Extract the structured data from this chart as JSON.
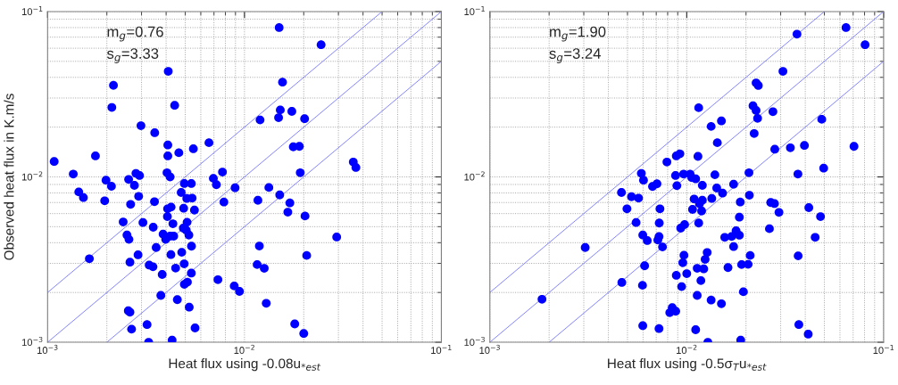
{
  "chart_data": [
    {
      "type": "scatter",
      "xlabel": "Heat flux using -0.08u$_{*est}$",
      "ylabel": "Observed heat flux in K.m/s",
      "annotations": [
        "m$_{g}$=0.76\ns$_{g}$=3.33"
      ],
      "log": "xy",
      "grid": true,
      "xlim": [
        0.001,
        0.1
      ],
      "ylim": [
        0.001,
        0.1
      ],
      "xticks": [
        {
          "value": 0.001,
          "label": "10$^{−3}$"
        },
        {
          "value": 0.01,
          "label": "10$^{−2}$"
        },
        {
          "value": 0.1,
          "label": "10$^{−1}$"
        }
      ],
      "yticks": [
        {
          "value": 0.001,
          "label": "10$^{−3}$"
        },
        {
          "value": 0.01,
          "label": "10$^{−2}$"
        },
        {
          "value": 0.1,
          "label": "10$^{−1}$"
        }
      ],
      "series": [
        {
          "marker": "circle",
          "color": "#0000ff",
          "x": [
            0.015,
            0.0245,
            0.0041,
            0.00216,
            0.00212,
            0.0156,
            0.00442,
            0.012,
            0.0149,
            0.0152,
            0.0174,
            0.0202,
            0.00298,
            0.0035,
            0.00408,
            0.00408,
            0.00464,
            0.0055,
            0.0066,
            0.0177,
            0.019,
            0.00108,
            0.00175,
            0.0357,
            0.0368,
            0.0192,
            0.00135,
            0.00281,
            0.00293,
            0.00404,
            0.00419,
            0.00773,
            0.00695,
            0.0072,
            0.00198,
            0.00211,
            0.00258,
            0.00276,
            0.00495,
            0.00537,
            0.00896,
            0.0133,
            0.00144,
            0.00152,
            0.00195,
            0.0029,
            0.00264,
            0.00349,
            0.00477,
            0.00509,
            0.00542,
            0.00786,
            0.0117,
            0.0151,
            0.017,
            0.0166,
            0.0203,
            0.00407,
            0.00424,
            0.00491,
            0.00557,
            0.00406,
            0.00242,
            0.00305,
            0.00433,
            0.00511,
            0.00344,
            0.00489,
            0.00506,
            0.00522,
            0.00253,
            0.00259,
            0.00386,
            0.00398,
            0.00419,
            0.00437,
            0.00356,
            0.00538,
            0.00163,
            0.00288,
            0.00423,
            0.0048,
            0.00262,
            0.00328,
            0.00343,
            0.00447,
            0.00494,
            0.00382,
            0.00537,
            0.00513,
            0.00495,
            0.00733,
            0.0116,
            0.0126,
            0.0119,
            0.0294,
            0.0207,
            0.00887,
            0.00943,
            0.00376,
            0.00456,
            0.0129,
            0.00524,
            0.00257,
            0.00262,
            0.0032,
            0.00267,
            0.00561,
            0.018,
            0.02,
            0.00326,
            0.00429
          ],
          "values": [
            0.08,
            0.063,
            0.0435,
            0.0358,
            0.0263,
            0.0374,
            0.0271,
            0.0221,
            0.0228,
            0.0254,
            0.0249,
            0.0225,
            0.0204,
            0.0185,
            0.0156,
            0.0134,
            0.014,
            0.0148,
            0.0161,
            0.0152,
            0.0153,
            0.0124,
            0.0134,
            0.0123,
            0.0114,
            0.0106,
            0.0104,
            0.0105,
            0.0102,
            0.0106,
            0.01,
            0.0107,
            0.0098,
            0.00897,
            0.00955,
            0.00878,
            0.00966,
            0.00889,
            0.00912,
            0.00912,
            0.0086,
            0.00863,
            0.00811,
            0.0075,
            0.00717,
            0.00763,
            0.00682,
            0.00708,
            0.00805,
            0.00741,
            0.00744,
            0.00705,
            0.00722,
            0.00778,
            0.00696,
            0.00612,
            0.0058,
            0.00641,
            0.00657,
            0.00646,
            0.0063,
            0.00575,
            0.00534,
            0.0053,
            0.00521,
            0.00532,
            0.00496,
            0.0049,
            0.00476,
            0.00445,
            0.00445,
            0.00419,
            0.00451,
            0.00419,
            0.00438,
            0.00438,
            0.00374,
            0.00381,
            0.0032,
            0.00338,
            0.00339,
            0.0035,
            0.00305,
            0.00293,
            0.00286,
            0.00281,
            0.00298,
            0.00257,
            0.00262,
            0.00231,
            0.00224,
            0.00239,
            0.00295,
            0.0028,
            0.00382,
            0.00433,
            0.00335,
            0.00219,
            0.00203,
            0.00192,
            0.00181,
            0.00172,
            0.00163,
            0.00155,
            0.00152,
            0.00128,
            0.0012,
            0.00122,
            0.00129,
            0.00113,
            0.001,
            0.00103
          ]
        },
        {
          "type": "line",
          "color": "#8080ff",
          "x": [
            0.001,
            0.05
          ],
          "values": [
            0.002,
            0.1
          ]
        },
        {
          "type": "line",
          "color": "#8080ff",
          "x": [
            0.001,
            0.1
          ],
          "values": [
            0.001,
            0.1
          ]
        },
        {
          "type": "line",
          "color": "#8080ff",
          "x": [
            0.002,
            0.1
          ],
          "values": [
            0.001,
            0.05
          ]
        }
      ]
    },
    {
      "type": "scatter",
      "xlabel": "Heat flux using -0.5σ$_{T}$u$_{*est}$",
      "annotations": [
        "m$_{g}$=1.90\ns$_{g}$=3.24"
      ],
      "log": "xy",
      "grid": true,
      "xlim": [
        0.001,
        0.1
      ],
      "ylim": [
        0.001,
        0.1
      ],
      "xticks": [
        {
          "value": 0.001,
          "label": "10$^{−3}$"
        },
        {
          "value": 0.01,
          "label": "10$^{−2}$"
        },
        {
          "value": 0.1,
          "label": "10$^{−1}$"
        }
      ],
      "yticks": [
        {
          "value": 0.001,
          "label": "10$^{−3}$"
        },
        {
          "value": 0.01,
          "label": "10$^{−2}$"
        },
        {
          "value": 0.1,
          "label": "10$^{−1}$"
        }
      ],
      "series": [
        {
          "marker": "circle",
          "color": "#0000ff",
          "x": [
            0.0363,
            0.0644,
            0.0805,
            0.0308,
            0.0225,
            0.0231,
            0.0115,
            0.0217,
            0.0225,
            0.0274,
            0.0229,
            0.0485,
            0.0133,
            0.015,
            0.022,
            0.0143,
            0.028,
            0.0336,
            0.0396,
            0.0707,
            0.00885,
            0.00923,
            0.0114,
            0.00793,
            0.0496,
            0.0207,
            0.0367,
            0.00588,
            0.00603,
            0.00877,
            0.00964,
            0.0104,
            0.0106,
            0.0111,
            0.0139,
            0.0067,
            0.00706,
            0.00891,
            0.012,
            0.0142,
            0.0173,
            0.0152,
            0.00466,
            0.00524,
            0.00569,
            0.0109,
            0.012,
            0.0134,
            0.0116,
            0.0187,
            0.0208,
            0.0267,
            0.0279,
            0.0294,
            0.0417,
            0.0478,
            0.00497,
            0.00731,
            0.0107,
            0.0119,
            0.0185,
            0.00553,
            0.00725,
            0.0115,
            0.00932,
            0.00975,
            0.0263,
            0.00598,
            0.0063,
            0.00723,
            0.00713,
            0.00753,
            0.0156,
            0.0169,
            0.0178,
            0.0185,
            0.0173,
            0.0449,
            0.00305,
            0.00968,
            0.00955,
            0.0127,
            0.0124,
            0.021,
            0.019,
            0.0205,
            0.0368,
            0.00611,
            0.0113,
            0.0122,
            0.0162,
            0.00885,
            0.01,
            0.0118,
            0.00468,
            0.00596,
            0.00942,
            0.0194,
            0.00184,
            0.0113,
            0.0133,
            0.015,
            0.0082,
            0.00844,
            0.00879,
            0.00598,
            0.00723,
            0.0111,
            0.0128,
            0.0188,
            0.0371,
            0.0414
          ],
          "values": [
            0.073,
            0.08,
            0.063,
            0.0435,
            0.037,
            0.0357,
            0.0262,
            0.0269,
            0.0252,
            0.0248,
            0.0226,
            0.0223,
            0.0202,
            0.0218,
            0.0183,
            0.0161,
            0.0147,
            0.015,
            0.0155,
            0.0153,
            0.0134,
            0.0138,
            0.0133,
            0.0123,
            0.0113,
            0.0106,
            0.0104,
            0.0105,
            0.00955,
            0.0102,
            0.0104,
            0.0104,
            0.0099,
            0.00973,
            0.0103,
            0.00875,
            0.00908,
            0.00885,
            0.00889,
            0.00856,
            0.00903,
            0.00798,
            0.00805,
            0.00759,
            0.00744,
            0.00735,
            0.00722,
            0.00741,
            0.00688,
            0.00705,
            0.00775,
            0.007,
            0.0069,
            0.0061,
            0.00652,
            0.00575,
            0.00641,
            0.00641,
            0.00636,
            0.00622,
            0.00571,
            0.0053,
            0.00526,
            0.00526,
            0.0049,
            0.00515,
            0.00486,
            0.00445,
            0.00412,
            0.00436,
            0.00415,
            0.00377,
            0.00431,
            0.00436,
            0.00472,
            0.00444,
            0.00379,
            0.00431,
            0.00374,
            0.00336,
            0.00303,
            0.00349,
            0.00317,
            0.00335,
            0.00295,
            0.00296,
            0.00333,
            0.0029,
            0.0028,
            0.00278,
            0.00283,
            0.00254,
            0.0026,
            0.00236,
            0.0023,
            0.00221,
            0.00217,
            0.00202,
            0.00182,
            0.00192,
            0.0018,
            0.00171,
            0.00151,
            0.00162,
            0.00154,
            0.00126,
            0.00121,
            0.00119,
            0.001,
            0.00103,
            0.00128,
            0.00112
          ]
        },
        {
          "type": "line",
          "color": "#8080ff",
          "x": [
            0.001,
            0.05
          ],
          "values": [
            0.002,
            0.1
          ]
        },
        {
          "type": "line",
          "color": "#8080ff",
          "x": [
            0.001,
            0.1
          ],
          "values": [
            0.001,
            0.1
          ]
        },
        {
          "type": "line",
          "color": "#8080ff",
          "x": [
            0.002,
            0.1
          ],
          "values": [
            0.001,
            0.05
          ]
        }
      ]
    }
  ]
}
